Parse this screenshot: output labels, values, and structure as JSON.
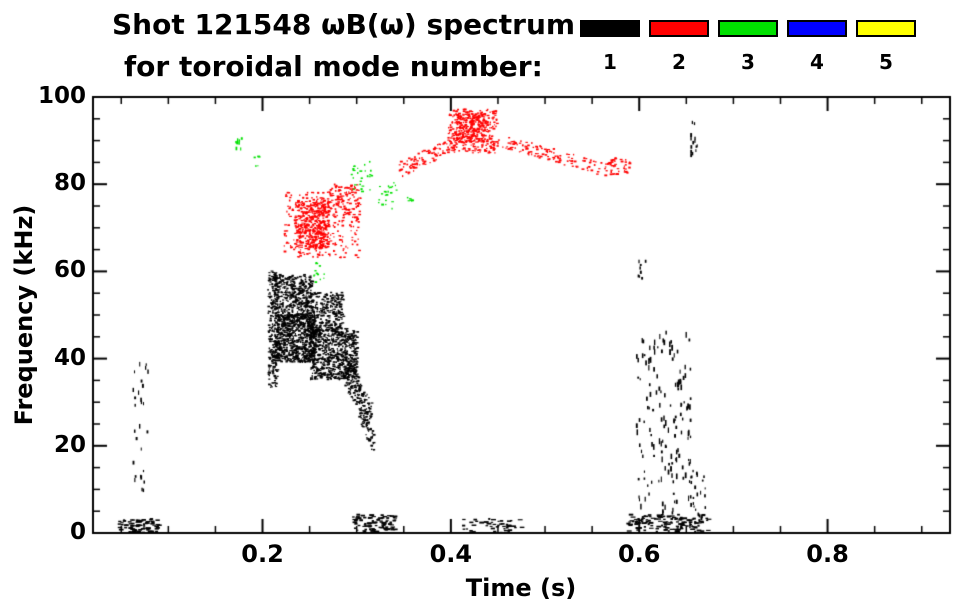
{
  "header": {
    "title_line1": "Shot 121548 ωB(ω) spectrum",
    "title_line2": "for toroidal mode number:"
  },
  "legend": {
    "items": [
      {
        "label": "1",
        "color": "#000000"
      },
      {
        "label": "2",
        "color": "#ff0000"
      },
      {
        "label": "3",
        "color": "#00e000"
      },
      {
        "label": "4",
        "color": "#0000ff"
      },
      {
        "label": "5",
        "color": "#ffff00"
      }
    ]
  },
  "chart_data": {
    "type": "scatter",
    "title": "Shot 121548 ωB(ω) spectrum for toroidal mode number",
    "xlabel": "Time (s)",
    "ylabel": "Frequency (kHz)",
    "xlim": [
      0.02,
      0.93
    ],
    "ylim": [
      0,
      100
    ],
    "xticks": [
      0.2,
      0.4,
      0.6,
      0.8
    ],
    "xtick_labels": [
      "0.2",
      "0.4",
      "0.6",
      "0.8"
    ],
    "yticks": [
      0,
      20,
      40,
      60,
      80,
      100
    ],
    "ytick_labels": [
      "0",
      "20",
      "40",
      "60",
      "80",
      "100"
    ],
    "x_minor_step": 0.05,
    "y_minor_step": 5,
    "grid": false,
    "legend_position": "top-right",
    "series": [
      {
        "name": "mode 1",
        "color": "#000000",
        "clusters": [
          {
            "t": [
              0.205,
              0.216
            ],
            "f": [
              33,
              60
            ],
            "n": 220
          },
          {
            "t": [
              0.212,
              0.252
            ],
            "f": [
              49,
              59
            ],
            "n": 420
          },
          {
            "t": [
              0.245,
              0.285
            ],
            "f": [
              45,
              55
            ],
            "n": 350
          },
          {
            "t": [
              0.212,
              0.255
            ],
            "f": [
              39,
              50
            ],
            "n": 750
          },
          {
            "t": [
              0.25,
              0.3
            ],
            "f": [
              35,
              47
            ],
            "n": 650
          },
          {
            "t": [
              0.285,
              0.315
            ],
            "trend": [
              38,
              26
            ],
            "jitter": 4,
            "n": 180
          },
          {
            "t": [
              0.3,
              0.318
            ],
            "trend": [
              30,
              20
            ],
            "jitter": 3,
            "n": 60
          },
          {
            "t": [
              0.062,
              0.078
            ],
            "f": [
              7,
              40
            ],
            "n": 28,
            "w": [
              1,
              2
            ],
            "h": [
              2,
              5
            ]
          },
          {
            "t": [
              0.046,
              0.088
            ],
            "f": [
              0,
              3
            ],
            "n": 80,
            "w": [
              2,
              5
            ],
            "h": [
              1,
              2
            ]
          },
          {
            "t": [
              0.295,
              0.34
            ],
            "f": [
              0,
              4
            ],
            "n": 90,
            "w": [
              2,
              5
            ],
            "h": [
              1,
              2
            ]
          },
          {
            "t": [
              0.41,
              0.475
            ],
            "f": [
              0,
              3
            ],
            "n": 45,
            "w": [
              2,
              5
            ],
            "h": [
              1,
              2
            ]
          },
          {
            "t": [
              0.585,
              0.672
            ],
            "f": [
              0,
              4
            ],
            "n": 140,
            "w": [
              2,
              5
            ],
            "h": [
              1,
              2
            ]
          },
          {
            "t": [
              0.596,
              0.655
            ],
            "f": [
              4,
              46
            ],
            "n": 150,
            "w": [
              1,
              2
            ],
            "h": [
              2,
              6
            ]
          },
          {
            "t": [
              0.598,
              0.606
            ],
            "f": [
              57,
              62
            ],
            "n": 8,
            "w": [
              1,
              2
            ],
            "h": [
              2,
              4
            ]
          },
          {
            "t": [
              0.654,
              0.662
            ],
            "f": [
              86,
              94
            ],
            "n": 14,
            "w": [
              1,
              2
            ],
            "h": [
              2,
              4
            ]
          },
          {
            "t": [
              0.652,
              0.67
            ],
            "f": [
              0,
              14
            ],
            "n": 30,
            "w": [
              1,
              2
            ],
            "h": [
              2,
              4
            ]
          }
        ]
      },
      {
        "name": "mode 2",
        "color": "#ff0000",
        "clusters": [
          {
            "t": [
              0.222,
              0.302
            ],
            "f": [
              63,
              78
            ],
            "n": 260
          },
          {
            "t": [
              0.234,
              0.27
            ],
            "f": [
              65,
              76
            ],
            "n": 430
          },
          {
            "t": [
              0.268,
              0.305
            ],
            "f": [
              72,
              80
            ],
            "n": 90
          },
          {
            "t": [
              0.344,
              0.402
            ],
            "trend": [
              83,
              89
            ],
            "jitter": 1.8,
            "n": 90
          },
          {
            "t": [
              0.396,
              0.448
            ],
            "f": [
              87,
              97
            ],
            "n": 300
          },
          {
            "t": [
              0.405,
              0.435
            ],
            "f": [
              89,
              96
            ],
            "n": 200
          },
          {
            "t": [
              0.448,
              0.565
            ],
            "trend": [
              90,
              83
            ],
            "jitter": 1.5,
            "n": 130
          },
          {
            "t": [
              0.565,
              0.59
            ],
            "f": [
              82,
              86
            ],
            "n": 45
          }
        ]
      },
      {
        "name": "mode 3",
        "color": "#00e000",
        "clusters": [
          {
            "t": [
              0.171,
              0.177
            ],
            "f": [
              86,
              92
            ],
            "n": 9,
            "w": [
              1,
              2
            ],
            "h": [
              2,
              4
            ]
          },
          {
            "t": [
              0.19,
              0.196
            ],
            "f": [
              84,
              87
            ],
            "n": 5
          },
          {
            "t": [
              0.293,
              0.316
            ],
            "f": [
              78,
              85
            ],
            "n": 26
          },
          {
            "t": [
              0.322,
              0.342
            ],
            "f": [
              74,
              81
            ],
            "n": 22
          },
          {
            "t": [
              0.253,
              0.266
            ],
            "f": [
              57,
              62
            ],
            "n": 12
          },
          {
            "t": [
              0.352,
              0.36
            ],
            "f": [
              74,
              77
            ],
            "n": 6
          }
        ]
      },
      {
        "name": "mode 4",
        "color": "#0000ff",
        "clusters": []
      },
      {
        "name": "mode 5",
        "color": "#ffff00",
        "clusters": []
      }
    ]
  }
}
